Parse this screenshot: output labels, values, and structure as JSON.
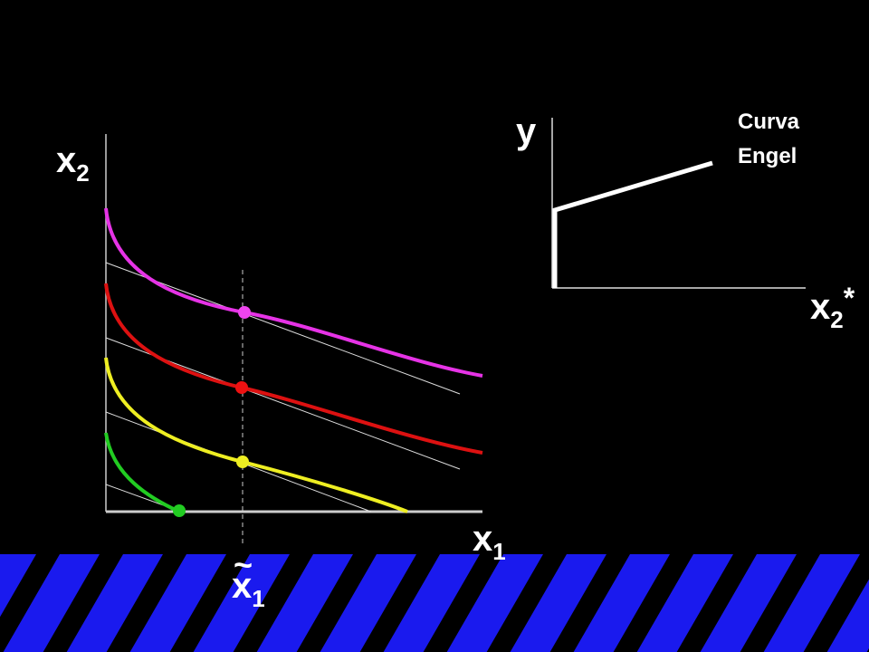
{
  "left_axes": {
    "y_label": {
      "base": "x",
      "sub": "2"
    },
    "x_label": {
      "base": "x",
      "sub": "1"
    },
    "marker_label": {
      "accent": "~",
      "base": "x",
      "sub": "1"
    }
  },
  "right_axes": {
    "y_label": "y",
    "x_label": {
      "base": "x",
      "sub": "2",
      "sup": "*"
    },
    "curve_label": [
      "Curva",
      "Engel"
    ]
  }
}
